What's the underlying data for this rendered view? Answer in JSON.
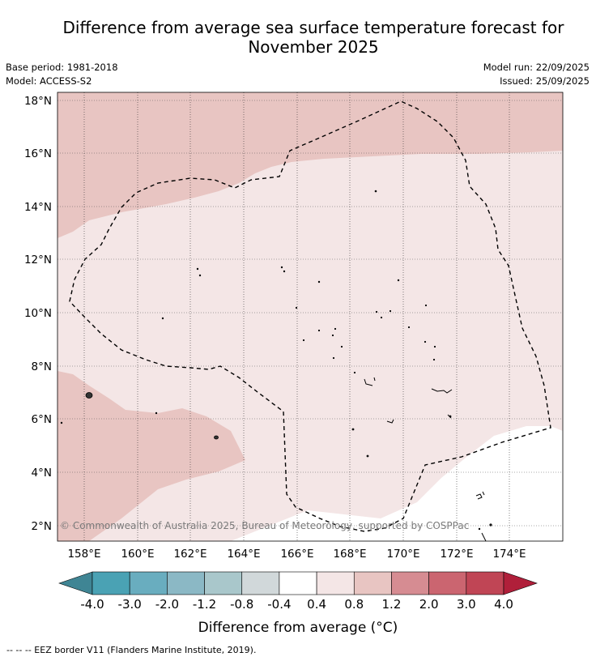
{
  "title_line1": "Difference from average sea surface temperature forecast for",
  "title_line2": "November 2025",
  "base_period": "Base period: 1981-2018",
  "model": "Model: ACCESS-S2",
  "model_run": "Model run: 22/09/2025",
  "issued": "Issued: 25/09/2025",
  "copyright": "© Commonwealth of Australia 2025, Bureau of Meteorology, supported by COSPPac",
  "footnote": "--  --  -- EEZ border V11 (Flanders Marine Institute, 2019).",
  "map": {
    "lon_ticks": [
      "158°E",
      "160°E",
      "162°E",
      "164°E",
      "166°E",
      "168°E",
      "170°E",
      "172°E",
      "174°E"
    ],
    "lat_ticks": [
      "18°N",
      "16°N",
      "14°N",
      "12°N",
      "10°N",
      "8°N",
      "6°N",
      "4°N",
      "2°N"
    ]
  },
  "colorbar": {
    "label": "Difference from average (°C)",
    "tick_labels": [
      "-4.0",
      "-3.0",
      "-2.0",
      "-1.2",
      "-0.8",
      "-0.4",
      "0.4",
      "0.8",
      "1.2",
      "2.0",
      "3.0",
      "4.0"
    ],
    "colors": {
      "under": "#3f8594",
      "bins": [
        "#4aa2b4",
        "#69adbf",
        "#8bb8c5",
        "#a9c7cb",
        "#d1d8da",
        "#ffffff",
        "#f4e6e6",
        "#e8c5c2",
        "#d68c92",
        "#cb6570",
        "#c04555"
      ],
      "over": "#b01f3a"
    }
  }
}
